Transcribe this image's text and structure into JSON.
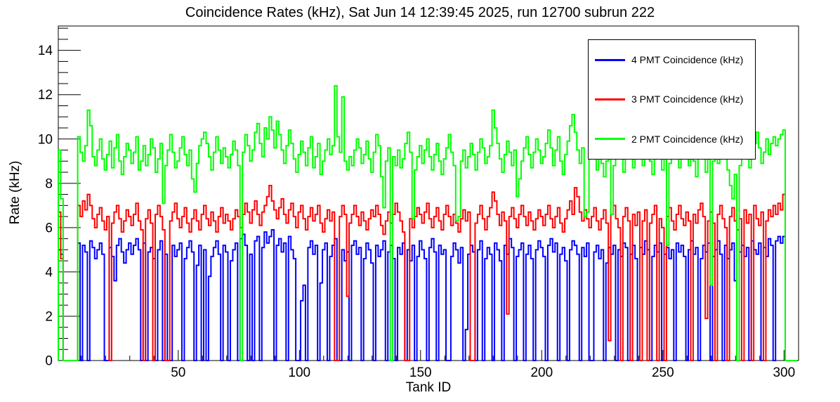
{
  "title": "Coincidence Rates (kHz), Sat Jun 14 12:39:45 2025, run 12700 subrun 222",
  "chart_data": {
    "type": "line",
    "subtype": "step-histogram",
    "title": "Coincidence Rates (kHz), Sat Jun 14 12:39:45 2025, run 12700 subrun 222",
    "xlabel": "Tank ID",
    "ylabel": "Rate (kHz)",
    "xlim": [
      0.5,
      306
    ],
    "ylim": [
      0,
      15.1
    ],
    "x_major_ticks": [
      50,
      100,
      150,
      200,
      250,
      300
    ],
    "x_minor_step": 10,
    "y_major_ticks": [
      0,
      2,
      4,
      6,
      8,
      10,
      12,
      14
    ],
    "y_minor_step": 0.5,
    "grid": "off",
    "bin_start": 0.5,
    "bin_width": 1,
    "legend": {
      "position": "top-right",
      "entries": [
        {
          "label": "4 PMT Coincidence (kHz)",
          "color": "#0000ff"
        },
        {
          "label": "3 PMT Coincidence (kHz)",
          "color": "#ff0000"
        },
        {
          "label": "2 PMT Coincidence (kHz)",
          "color": "#00ff00"
        }
      ]
    },
    "series": [
      {
        "name": "4 PMT Coincidence (kHz)",
        "color": "#0000ff",
        "values": [
          5.0,
          4.8,
          0,
          0,
          0,
          0,
          0,
          0,
          5.3,
          0,
          5.2,
          4.9,
          0,
          5.4,
          5.1,
          4.6,
          5.0,
          5.3,
          4.8,
          0,
          0,
          5.1,
          4.7,
          3.6,
          5.2,
          5.5,
          4.9,
          4.4,
          5.0,
          5.3,
          4.8,
          5.2,
          5.5,
          5.0,
          0,
          5.3,
          0,
          4.9,
          5.1,
          4.6,
          0,
          5.0,
          5.4,
          0,
          4.8,
          0,
          0,
          5.2,
          4.7,
          5.0,
          5.3,
          0,
          4.6,
          5.1,
          5.4,
          4.9,
          0,
          4.3,
          5.2,
          0,
          5.0,
          0,
          3.8,
          4.7,
          5.1,
          5.4,
          4.8,
          0,
          5.2,
          4.9,
          0,
          4.5,
          5.0,
          5.3,
          0,
          5.5,
          5.7,
          5.2,
          0,
          4.8,
          0,
          5.4,
          5.6,
          0,
          5.1,
          5.8,
          5.3,
          5.6,
          5.9,
          0,
          5.2,
          5.5,
          4.9,
          5.3,
          0,
          5.6,
          5.0,
          4.6,
          0,
          0,
          2.7,
          3.4,
          0,
          5.1,
          5.4,
          4.8,
          5.2,
          0,
          3.5,
          5.0,
          5.3,
          0,
          4.7,
          5.2,
          5.5,
          0,
          0,
          5.0,
          4.5,
          4.9,
          0,
          5.2,
          5.4,
          4.8,
          5.1,
          0,
          4.6,
          5.3,
          5.0,
          4.4,
          0,
          5.2,
          4.7,
          5.0,
          5.4,
          0,
          4.9,
          5.2,
          4.6,
          0,
          5.1,
          4.8,
          5.3,
          0,
          5.0,
          4.5,
          5.2,
          0,
          4.7,
          5.4,
          5.0,
          4.6,
          0,
          5.1,
          5.5,
          4.9,
          0,
          5.2,
          4.8,
          5.0,
          0,
          0,
          4.7,
          5.3,
          5.0,
          4.4,
          5.1,
          0,
          1.4,
          4.8,
          5.2,
          4.9,
          0,
          5.0,
          5.4,
          0,
          4.6,
          5.1,
          4.8,
          0,
          5.3,
          5.0,
          4.5,
          0,
          5.2,
          4.8,
          5.5,
          5.1,
          0,
          4.7,
          5.0,
          5.3,
          0,
          4.8,
          5.2,
          4.6,
          0,
          5.0,
          5.4,
          5.1,
          4.7,
          0,
          5.2,
          5.5,
          4.9,
          5.3,
          0,
          4.8,
          5.1,
          4.5,
          0,
          5.0,
          5.4,
          5.2,
          4.8,
          0,
          5.1,
          4.7,
          5.3,
          0,
          0,
          4.9,
          5.2,
          4.6,
          5.0,
          0,
          4.4,
          5.1,
          4.8,
          5.2,
          0,
          5.0,
          4.7,
          5.3,
          5.1,
          0,
          4.8,
          5.2,
          4.6,
          0,
          5.1,
          4.8,
          5.4,
          5.0,
          0,
          4.7,
          5.2,
          4.9,
          5.3,
          0,
          4.8,
          5.1,
          4.6,
          5.0,
          0,
          5.3,
          4.9,
          5.2,
          4.7,
          0,
          5.0,
          5.4,
          4.8,
          5.1,
          0,
          4.6,
          5.2,
          4.9,
          5.3,
          0,
          4.7,
          5.0,
          5.4,
          4.8,
          0,
          5.2,
          4.6,
          5.0,
          5.3,
          3.6,
          0,
          4.9,
          5.2,
          4.7,
          5.1,
          0,
          5.4,
          5.0,
          4.8,
          5.3,
          0,
          5.1,
          4.7,
          5.5,
          5.2,
          0,
          5.4,
          5.6,
          5.3,
          5.6,
          0,
          0,
          0,
          0,
          0
        ]
      },
      {
        "name": "3 PMT Coincidence (kHz)",
        "color": "#ff0000",
        "values": [
          6.7,
          4.6,
          0,
          0,
          0,
          0,
          0,
          0,
          7.0,
          6.5,
          7.2,
          6.8,
          7.5,
          7.0,
          6.4,
          6.0,
          6.6,
          6.9,
          6.3,
          5.9,
          6.5,
          0,
          6.2,
          6.7,
          7.0,
          6.4,
          5.8,
          6.3,
          6.8,
          6.5,
          6.1,
          6.6,
          7.1,
          6.3,
          5.9,
          0,
          6.4,
          6.8,
          6.2,
          0,
          6.6,
          7.0,
          6.5,
          5.9,
          0,
          0,
          6.3,
          6.7,
          7.1,
          6.4,
          6.0,
          6.5,
          6.9,
          6.2,
          5.8,
          6.4,
          6.8,
          6.3,
          5.9,
          6.6,
          7.0,
          6.4,
          6.1,
          6.7,
          6.3,
          5.8,
          6.5,
          6.9,
          6.2,
          6.6,
          6.3,
          5.9,
          6.4,
          6.8,
          6.5,
          6.0,
          6.6,
          7.1,
          6.7,
          6.2,
          6.8,
          7.2,
          6.6,
          6.1,
          6.7,
          7.0,
          7.4,
          7.9,
          7.2,
          6.8,
          6.4,
          6.9,
          7.3,
          6.6,
          6.2,
          6.8,
          7.1,
          6.5,
          6.0,
          6.7,
          7.0,
          6.4,
          5.9,
          6.5,
          6.9,
          6.3,
          6.6,
          7.0,
          6.2,
          5.8,
          6.4,
          6.8,
          6.3,
          6.7,
          0,
          0,
          6.5,
          7.0,
          6.6,
          2.9,
          6.2,
          6.6,
          7.0,
          6.5,
          6.1,
          6.7,
          6.3,
          5.9,
          6.4,
          6.8,
          6.5,
          7.0,
          6.6,
          6.1,
          5.7,
          6.3,
          6.7,
          6.2,
          6.6,
          7.1,
          6.7,
          6.3,
          5.8,
          0,
          0,
          6.4,
          6.0,
          6.5,
          6.9,
          6.6,
          6.2,
          6.7,
          7.1,
          6.4,
          6.0,
          6.5,
          6.9,
          6.3,
          5.9,
          6.6,
          7.0,
          6.5,
          6.1,
          6.6,
          6.2,
          5.8,
          6.4,
          6.8,
          6.3,
          6.7,
          0,
          0,
          6.2,
          6.6,
          7.0,
          6.4,
          5.9,
          6.5,
          6.9,
          7.6,
          7.2,
          6.6,
          6.1,
          6.7,
          6.3,
          2.1,
          6.5,
          6.9,
          6.4,
          6.0,
          6.6,
          7.0,
          6.5,
          6.1,
          6.7,
          6.3,
          5.9,
          6.4,
          6.8,
          6.5,
          6.1,
          6.6,
          7.0,
          6.4,
          6.0,
          6.5,
          6.9,
          6.2,
          5.8,
          6.4,
          6.8,
          7.2,
          6.6,
          7.8,
          7.4,
          6.7,
          6.3,
          6.8,
          6.4,
          6.0,
          6.5,
          6.9,
          6.3,
          5.9,
          6.4,
          6.8,
          6.2,
          0.9,
          6.6,
          7.0,
          6.4,
          6.0,
          0,
          6.5,
          6.9,
          6.3,
          0,
          6.6,
          6.1,
          6.7,
          0,
          6.3,
          6.8,
          0,
          6.2,
          6.6,
          7.0,
          0,
          6.4,
          6.0,
          0,
          6.5,
          6.9,
          6.3,
          5.9,
          6.6,
          7.0,
          6.4,
          6.1,
          6.7,
          6.3,
          0,
          6.6,
          6.2,
          6.8,
          7.1,
          6.5,
          1.9,
          6.3,
          6.7,
          6.2,
          0,
          6.6,
          7.0,
          6.4,
          6.0,
          0,
          6.5,
          6.9,
          6.3,
          5.9,
          6.4,
          0,
          6.8,
          6.2,
          6.6,
          0,
          7.0,
          6.4,
          6.1,
          6.7,
          0,
          6.3,
          6.8,
          6.5,
          7.0,
          6.6,
          7.1,
          6.8,
          7.5,
          0,
          0,
          0,
          0,
          0
        ]
      },
      {
        "name": "2 PMT Coincidence (kHz)",
        "color": "#00ff00",
        "values": [
          9.5,
          7.3,
          0,
          0,
          0,
          0,
          0,
          0,
          10.1,
          9.4,
          9.0,
          9.7,
          11.3,
          10.6,
          9.2,
          8.8,
          9.5,
          10.0,
          9.1,
          8.6,
          9.3,
          9.9,
          8.7,
          9.6,
          10.2,
          9.0,
          8.4,
          9.2,
          9.8,
          9.5,
          8.9,
          9.4,
          10.1,
          8.6,
          9.0,
          9.7,
          8.8,
          9.3,
          10.0,
          9.6,
          8.5,
          9.1,
          9.8,
          7.1,
          8.8,
          9.5,
          10.2,
          9.4,
          8.7,
          9.0,
          9.6,
          10.1,
          9.3,
          8.8,
          9.5,
          8.2,
          7.6,
          8.9,
          9.7,
          10.0,
          10.3,
          9.8,
          9.2,
          8.6,
          9.4,
          10.1,
          9.5,
          8.9,
          9.6,
          9.2,
          8.7,
          9.3,
          9.9,
          9.5,
          8.8,
          0,
          9.4,
          10.2,
          9.7,
          9.0,
          9.5,
          10.3,
          10.7,
          9.8,
          9.2,
          10.5,
          10.0,
          11.0,
          10.4,
          9.6,
          10.8,
          10.2,
          9.5,
          8.9,
          9.7,
          10.4,
          9.8,
          9.1,
          8.5,
          9.3,
          9.9,
          9.4,
          8.8,
          9.6,
          10.1,
          8.7,
          9.2,
          9.8,
          8.4,
          9.0,
          9.5,
          10.0,
          9.3,
          9.7,
          12.4,
          10.1,
          9.4,
          11.9,
          9.0,
          8.6,
          9.2,
          8.8,
          9.5,
          10.0,
          9.6,
          8.9,
          9.3,
          9.9,
          9.1,
          8.5,
          9.4,
          10.2,
          9.7,
          8.3,
          6.9,
          9.0,
          9.6,
          0,
          9.2,
          8.8,
          9.5,
          8.7,
          9.1,
          9.8,
          10.3,
          9.4,
          6.4,
          8.6,
          9.2,
          9.7,
          8.9,
          9.5,
          10.0,
          9.2,
          8.6,
          9.3,
          9.8,
          9.0,
          8.4,
          9.1,
          9.6,
          10.2,
          9.4,
          8.8,
          6.3,
          6.5,
          9.0,
          9.5,
          8.7,
          9.2,
          9.8,
          9.3,
          8.6,
          9.4,
          10.0,
          9.6,
          8.9,
          9.2,
          9.7,
          11.3,
          10.5,
          9.8,
          9.1,
          8.5,
          9.3,
          9.9,
          9.4,
          8.8,
          9.5,
          7.4,
          8.2,
          9.0,
          9.6,
          10.1,
          9.3,
          8.7,
          9.4,
          10.0,
          9.5,
          8.9,
          9.2,
          9.8,
          10.4,
          9.6,
          8.8,
          9.5,
          10.1,
          9.0,
          8.4,
          9.3,
          9.9,
          10.6,
          11.1,
          10.3,
          9.5,
          8.9,
          9.6,
          6.5,
          6.7,
          9.1,
          9.7,
          9.2,
          8.6,
          9.4,
          8.9,
          8.3,
          9.0,
          9.5,
          6.6,
          8.8,
          9.3,
          9.9,
          9.1,
          8.5,
          9.2,
          9.8,
          9.4,
          8.7,
          9.5,
          10.0,
          9.6,
          8.8,
          9.3,
          9.9,
          9.0,
          8.4,
          9.1,
          9.7,
          9.4,
          8.6,
          9.2,
          5.2,
          8.9,
          9.5,
          10.1,
          9.3,
          8.7,
          9.6,
          10.2,
          9.4,
          8.8,
          9.5,
          9.0,
          8.3,
          9.2,
          9.8,
          9.1,
          8.5,
          9.3,
          3.4,
          9.0,
          9.6,
          8.9,
          9.4,
          10.0,
          9.2,
          8.6,
          7.9,
          7.3,
          8.4,
          0,
          8.8,
          9.3,
          9.9,
          9.5,
          8.7,
          9.2,
          9.8,
          10.3,
          9.6,
          8.9,
          9.4,
          10.0,
          9.3,
          9.8,
          10.1,
          9.7,
          10.0,
          10.2,
          10.4,
          0,
          0,
          0,
          0,
          0
        ]
      }
    ]
  }
}
